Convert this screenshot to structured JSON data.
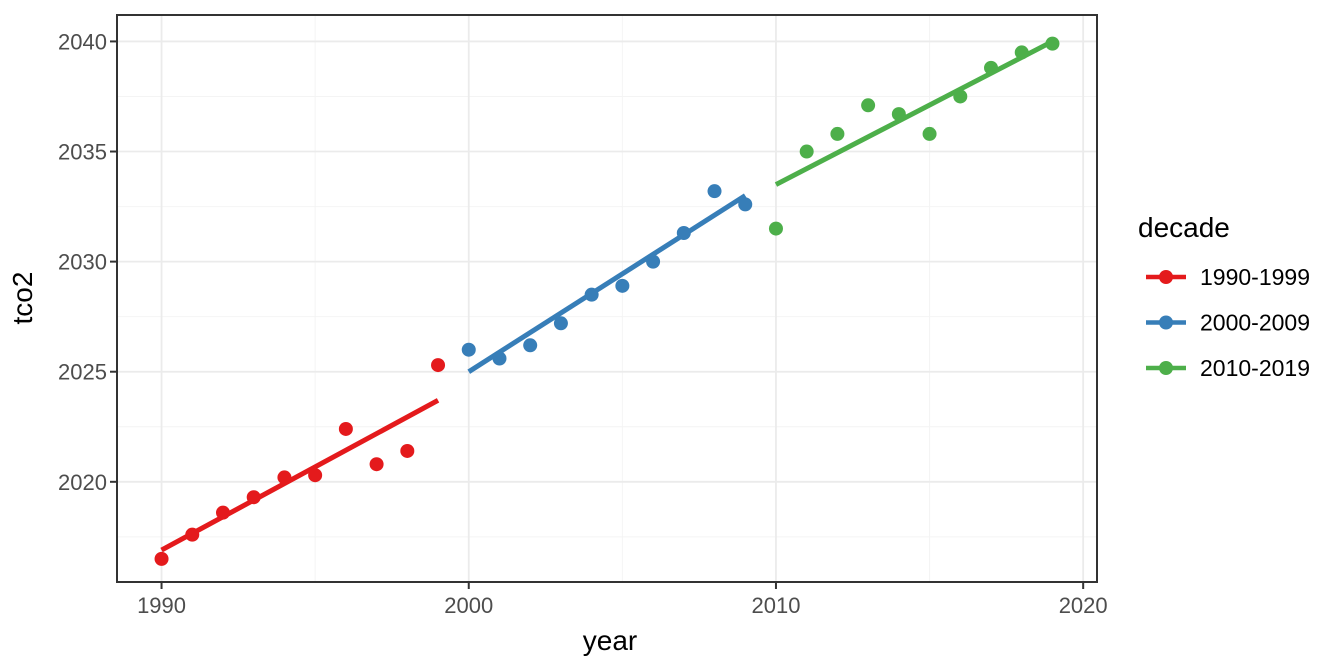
{
  "chart_data": {
    "type": "scatter",
    "title": "",
    "xlabel": "year",
    "ylabel": "tco2",
    "legend_title": "decade",
    "legend_position": "right",
    "grid": "major+minor",
    "xlim": [
      1988.55,
      2020.45
    ],
    "ylim": [
      2015.45,
      2041.2
    ],
    "x_major_ticks": [
      1990,
      2000,
      2010,
      2020
    ],
    "x_minor_ticks": [
      1995,
      2005,
      2015
    ],
    "y_major_ticks": [
      2020,
      2025,
      2030,
      2035,
      2040
    ],
    "y_minor_ticks": [
      2017.5,
      2022.5,
      2027.5,
      2032.5,
      2037.5
    ],
    "series": [
      {
        "name": "1990-1999",
        "color": "#E41A1C",
        "x": [
          1990,
          1991,
          1992,
          1993,
          1994,
          1995,
          1996,
          1997,
          1998,
          1999
        ],
        "y": [
          2016.5,
          2017.6,
          2018.6,
          2019.3,
          2020.2,
          2020.3,
          2022.4,
          2020.8,
          2021.4,
          2025.3
        ],
        "trend": {
          "x": [
            1990,
            1999
          ],
          "y": [
            2016.9,
            2023.7
          ]
        }
      },
      {
        "name": "2000-2009",
        "color": "#377EB8",
        "x": [
          2000,
          2001,
          2002,
          2003,
          2004,
          2005,
          2006,
          2007,
          2008,
          2009
        ],
        "y": [
          2026.0,
          2025.6,
          2026.2,
          2027.2,
          2028.5,
          2028.9,
          2030.0,
          2031.3,
          2033.2,
          2032.6
        ],
        "trend": {
          "x": [
            2000,
            2009
          ],
          "y": [
            2025.0,
            2033.0
          ]
        }
      },
      {
        "name": "2010-2019",
        "color": "#4DAF4A",
        "x": [
          2010,
          2011,
          2012,
          2013,
          2014,
          2015,
          2016,
          2017,
          2018,
          2019
        ],
        "y": [
          2031.5,
          2035.0,
          2035.8,
          2037.1,
          2036.7,
          2035.8,
          2037.5,
          2038.8,
          2039.5,
          2039.9
        ],
        "trend": {
          "x": [
            2010,
            2019
          ],
          "y": [
            2033.5,
            2040.0
          ]
        }
      }
    ],
    "theme": {
      "background": "#FFFFFF",
      "panel_background": "#FFFFFF",
      "panel_border": "#333333",
      "grid_major": "#EBEBEB",
      "grid_minor": "#F4F4F4",
      "tick_mark_color": "#333333",
      "tick_label_color": "#4D4D4D",
      "title_color": "#000000"
    }
  }
}
